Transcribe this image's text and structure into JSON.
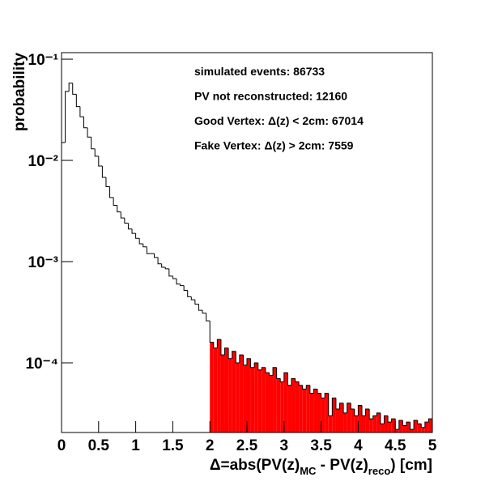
{
  "chart_data": {
    "type": "histogram",
    "y_label": "probability",
    "x_label_parts": [
      "Δ=abs(PV(z)",
      "MC",
      " - PV(z)",
      "reco",
      ") [cm]"
    ],
    "annotations": [
      "simulated events: 86733",
      "PV not reconstructed: 12160",
      "Good Vertex: Δ(z) < 2cm: 67014",
      "Fake Vertex: Δ(z) > 2cm: 7559"
    ],
    "log_y": true,
    "xlim": [
      0,
      5
    ],
    "xticks": [
      0,
      0.5,
      1,
      1.5,
      2,
      2.5,
      3,
      3.5,
      4,
      4.5,
      5
    ],
    "ylim": [
      2.05e-05,
      0.116
    ],
    "yticks": [
      {
        "value": 0.1,
        "label": "10⁻¹"
      },
      {
        "value": 0.01,
        "label": "10⁻²"
      },
      {
        "value": 0.001,
        "label": "10⁻³"
      },
      {
        "value": 0.0001,
        "label": "10⁻⁴"
      }
    ],
    "highlight_from": 2,
    "highlight_color": "#ff0000",
    "line_color": "#000000",
    "bins": [
      0,
      0.05,
      0.1,
      0.15,
      0.2,
      0.25,
      0.3,
      0.35,
      0.4,
      0.45,
      0.5,
      0.55,
      0.6,
      0.65,
      0.7,
      0.75,
      0.8,
      0.85,
      0.9,
      0.95,
      1,
      1.05,
      1.1,
      1.15,
      1.2,
      1.25,
      1.3,
      1.35,
      1.4,
      1.45,
      1.5,
      1.55,
      1.6,
      1.65,
      1.7,
      1.75,
      1.8,
      1.85,
      1.9,
      1.95,
      2,
      2.05,
      2.1,
      2.15,
      2.2,
      2.25,
      2.3,
      2.35,
      2.4,
      2.45,
      2.5,
      2.55,
      2.6,
      2.65,
      2.7,
      2.75,
      2.8,
      2.85,
      2.9,
      2.95,
      3,
      3.05,
      3.1,
      3.15,
      3.2,
      3.25,
      3.3,
      3.35,
      3.4,
      3.45,
      3.5,
      3.55,
      3.6,
      3.65,
      3.7,
      3.75,
      3.8,
      3.85,
      3.9,
      3.95,
      4,
      4.05,
      4.1,
      4.15,
      4.2,
      4.25,
      4.3,
      4.35,
      4.4,
      4.45,
      4.5,
      4.55,
      4.6,
      4.65,
      4.7,
      4.75,
      4.8,
      4.85,
      4.9,
      4.95,
      5
    ],
    "values": [
      0.015,
      0.048,
      0.058,
      0.045,
      0.034,
      0.027,
      0.021,
      0.017,
      0.013,
      0.011,
      0.0088,
      0.0068,
      0.0055,
      0.0043,
      0.0036,
      0.0031,
      0.0027,
      0.0024,
      0.0021,
      0.0019,
      0.0017,
      0.0015,
      0.0014,
      0.0012,
      0.0012,
      0.0011,
      0.00095,
      0.00088,
      0.00085,
      0.00072,
      0.00068,
      0.0006,
      0.00058,
      0.00052,
      0.00045,
      0.00042,
      0.00038,
      0.00033,
      0.00031,
      0.00026,
      0.00016,
      0.00014,
      0.00017,
      0.00012,
      0.00014,
      0.00011,
      0.00013,
      0.0001,
      0.00012,
      9.5e-05,
      0.00011,
      9e-05,
      0.0001,
      8.5e-05,
      9e-05,
      8e-05,
      7.5e-05,
      9e-05,
      7e-05,
      6.5e-05,
      8e-05,
      6e-05,
      7e-05,
      6.5e-05,
      6e-05,
      5.5e-05,
      6e-05,
      5e-05,
      5.5e-05,
      5e-05,
      4.5e-05,
      5e-05,
      3e-05,
      4.5e-05,
      3.5e-05,
      4e-05,
      3.2e-05,
      4e-05,
      3.5e-05,
      3e-05,
      3.8e-05,
      3e-05,
      3.5e-05,
      2.8e-05,
      3e-05,
      3.2e-05,
      2.5e-05,
      3e-05,
      2.6e-05,
      2.8e-05,
      2.2e-05,
      2.7e-05,
      2.4e-05,
      2.6e-05,
      2.2e-05,
      2.7e-05,
      2.5e-05,
      2.3e-05,
      2.6e-05,
      2.8e-05
    ]
  }
}
